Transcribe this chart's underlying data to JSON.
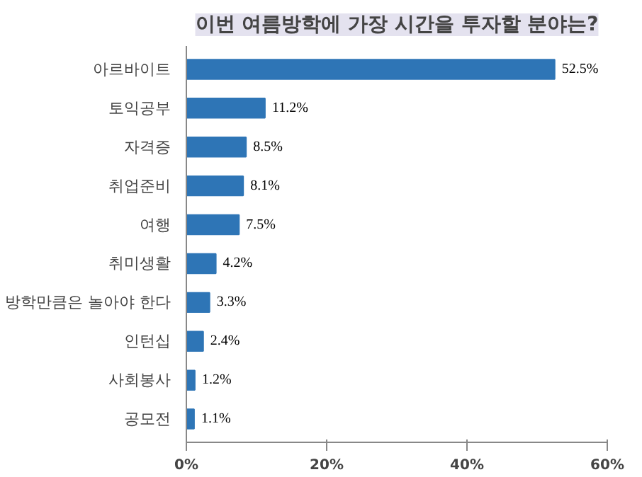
{
  "chart_data": {
    "type": "bar",
    "orientation": "horizontal",
    "title": "이번 여름방학에 가장 시간을 투자할 분야는?",
    "categories": [
      "아르바이트",
      "토익공부",
      "자격증",
      "취업준비",
      "여행",
      "취미생활",
      "방학만큼은 놀아야 한다",
      "인턴십",
      "사회봉사",
      "공모전"
    ],
    "values": [
      52.5,
      11.2,
      8.5,
      8.1,
      7.5,
      4.2,
      3.3,
      2.4,
      1.2,
      1.1
    ],
    "value_labels": [
      "52.5%",
      "11.2%",
      "8.5%",
      "8.1%",
      "7.5%",
      "4.2%",
      "3.3%",
      "2.4%",
      "1.2%",
      "1.1%"
    ],
    "color": "#2e75b6",
    "xlim": [
      0,
      60
    ],
    "xticks": [
      {
        "value": 0,
        "label": "0%"
      },
      {
        "value": 20,
        "label": "20%"
      },
      {
        "value": 40,
        "label": "40%"
      },
      {
        "value": 60,
        "label": "60%"
      }
    ],
    "grid": false
  }
}
